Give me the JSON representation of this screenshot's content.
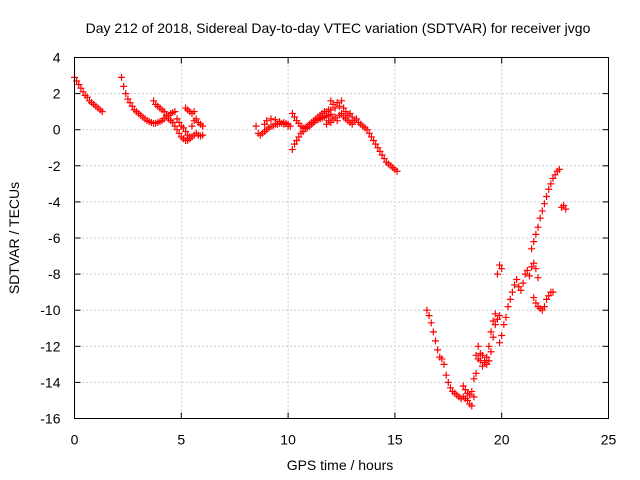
{
  "chart_data": {
    "type": "scatter",
    "title": "Day 212 of 2018, Sidereal Day-to-day VTEC variation (SDTVAR) for receiver jvgo",
    "xlabel": "GPS time / hours",
    "ylabel": "SDTVAR / TECUs",
    "xlim": [
      0,
      25
    ],
    "ylim": [
      -16,
      4
    ],
    "xticks": [
      0,
      5,
      10,
      15,
      20,
      25
    ],
    "yticks": [
      4,
      2,
      0,
      -2,
      -4,
      -6,
      -8,
      -10,
      -12,
      -14,
      -16
    ],
    "grid": true,
    "marker": "+",
    "color": "#ff0000",
    "segments": [
      {
        "name": "seg1",
        "points": [
          [
            0.0,
            2.9
          ],
          [
            0.1,
            2.7
          ],
          [
            0.2,
            2.5
          ],
          [
            0.3,
            2.3
          ],
          [
            0.4,
            2.1
          ],
          [
            0.5,
            1.9
          ],
          [
            0.6,
            1.8
          ],
          [
            0.7,
            1.6
          ],
          [
            0.8,
            1.5
          ],
          [
            0.9,
            1.4
          ],
          [
            1.0,
            1.3
          ],
          [
            1.1,
            1.2
          ],
          [
            1.2,
            1.1
          ],
          [
            1.3,
            1.0
          ]
        ]
      },
      {
        "name": "seg2",
        "points": [
          [
            2.2,
            2.9
          ],
          [
            2.3,
            2.4
          ],
          [
            2.4,
            2.0
          ],
          [
            2.5,
            1.7
          ],
          [
            2.6,
            1.5
          ],
          [
            2.7,
            1.3
          ],
          [
            2.8,
            1.1
          ],
          [
            2.9,
            1.0
          ],
          [
            3.0,
            0.9
          ],
          [
            3.1,
            0.8
          ],
          [
            3.2,
            0.7
          ],
          [
            3.3,
            0.6
          ],
          [
            3.4,
            0.5
          ],
          [
            3.5,
            0.45
          ],
          [
            3.6,
            0.4
          ],
          [
            3.7,
            0.35
          ],
          [
            3.8,
            0.35
          ],
          [
            3.9,
            0.4
          ],
          [
            4.0,
            0.45
          ],
          [
            4.1,
            0.5
          ],
          [
            4.2,
            0.6
          ],
          [
            4.3,
            0.7
          ],
          [
            4.4,
            0.8
          ],
          [
            4.5,
            0.9
          ],
          [
            4.6,
            0.95
          ],
          [
            4.7,
            1.0
          ]
        ]
      },
      {
        "name": "seg3",
        "points": [
          [
            3.7,
            1.6
          ],
          [
            3.8,
            1.4
          ],
          [
            3.9,
            1.3
          ],
          [
            4.0,
            1.2
          ],
          [
            4.1,
            1.1
          ],
          [
            4.2,
            1.0
          ],
          [
            4.3,
            0.8
          ],
          [
            4.4,
            0.6
          ],
          [
            4.5,
            0.5
          ],
          [
            4.6,
            0.4
          ],
          [
            4.7,
            0.2
          ],
          [
            4.8,
            0.0
          ],
          [
            4.9,
            -0.2
          ],
          [
            5.0,
            -0.4
          ],
          [
            5.1,
            -0.5
          ],
          [
            5.2,
            -0.6
          ],
          [
            5.3,
            -0.6
          ],
          [
            5.4,
            -0.5
          ],
          [
            5.5,
            -0.4
          ],
          [
            5.6,
            -0.3
          ],
          [
            5.7,
            -0.2
          ],
          [
            5.8,
            -0.3
          ],
          [
            5.9,
            -0.35
          ],
          [
            6.0,
            -0.3
          ]
        ]
      },
      {
        "name": "seg4",
        "points": [
          [
            4.8,
            0.6
          ],
          [
            4.9,
            0.4
          ],
          [
            5.0,
            0.2
          ],
          [
            5.1,
            0.1
          ],
          [
            5.2,
            -0.1
          ],
          [
            5.3,
            -0.3
          ],
          [
            5.4,
            -0.4
          ],
          [
            5.5,
            0.2
          ],
          [
            5.6,
            0.5
          ],
          [
            5.7,
            0.6
          ],
          [
            5.8,
            0.4
          ],
          [
            5.9,
            0.3
          ],
          [
            6.0,
            0.2
          ],
          [
            5.2,
            1.2
          ],
          [
            5.3,
            1.1
          ],
          [
            5.4,
            1.0
          ],
          [
            5.5,
            0.9
          ],
          [
            5.6,
            1.0
          ]
        ]
      },
      {
        "name": "seg5",
        "points": [
          [
            8.5,
            0.2
          ],
          [
            8.6,
            -0.2
          ],
          [
            8.7,
            -0.3
          ],
          [
            8.8,
            -0.2
          ],
          [
            8.9,
            -0.1
          ],
          [
            9.0,
            0.0
          ],
          [
            9.1,
            0.1
          ],
          [
            9.2,
            0.2
          ],
          [
            9.3,
            0.2
          ],
          [
            9.4,
            0.3
          ],
          [
            9.5,
            0.3
          ],
          [
            9.6,
            0.35
          ],
          [
            9.7,
            0.35
          ],
          [
            9.8,
            0.4
          ],
          [
            9.9,
            0.35
          ],
          [
            10.0,
            0.3
          ],
          [
            10.1,
            0.2
          ]
        ]
      },
      {
        "name": "seg6",
        "points": [
          [
            8.9,
            0.3
          ],
          [
            9.0,
            0.5
          ],
          [
            9.2,
            0.6
          ],
          [
            9.4,
            0.55
          ],
          [
            9.6,
            0.45
          ],
          [
            9.8,
            0.3
          ],
          [
            10.0,
            0.2
          ]
        ]
      },
      {
        "name": "seg7",
        "points": [
          [
            10.2,
            0.9
          ],
          [
            10.3,
            0.7
          ],
          [
            10.4,
            0.5
          ],
          [
            10.5,
            0.35
          ],
          [
            10.6,
            0.2
          ],
          [
            10.7,
            0.1
          ],
          [
            10.8,
            0.05
          ],
          [
            10.9,
            0.1
          ],
          [
            11.0,
            0.2
          ],
          [
            11.1,
            0.3
          ],
          [
            11.2,
            0.4
          ],
          [
            11.3,
            0.5
          ],
          [
            11.4,
            0.55
          ],
          [
            11.5,
            0.6
          ],
          [
            11.6,
            0.65
          ],
          [
            11.7,
            0.7
          ],
          [
            11.8,
            0.75
          ],
          [
            11.9,
            0.8
          ],
          [
            12.0,
            0.85
          ]
        ]
      },
      {
        "name": "seg8",
        "points": [
          [
            10.2,
            -1.1
          ],
          [
            10.3,
            -0.8
          ],
          [
            10.4,
            -0.6
          ],
          [
            10.5,
            -0.4
          ],
          [
            10.6,
            -0.2
          ],
          [
            10.7,
            -0.1
          ],
          [
            10.8,
            0.1
          ],
          [
            10.9,
            0.2
          ],
          [
            11.0,
            0.3
          ],
          [
            11.1,
            0.4
          ],
          [
            11.2,
            0.5
          ],
          [
            11.3,
            0.6
          ],
          [
            11.4,
            0.7
          ],
          [
            11.5,
            0.8
          ],
          [
            11.6,
            0.9
          ],
          [
            11.7,
            1.0
          ],
          [
            11.8,
            1.0
          ],
          [
            11.9,
            1.1
          ],
          [
            12.0,
            1.1
          ]
        ]
      },
      {
        "name": "seg9",
        "points": [
          [
            12.0,
            1.6
          ],
          [
            12.1,
            1.4
          ],
          [
            12.2,
            1.2
          ],
          [
            12.3,
            1.5
          ],
          [
            12.4,
            1.3
          ],
          [
            12.5,
            1.6
          ],
          [
            12.6,
            1.2
          ],
          [
            12.7,
            1.0
          ],
          [
            12.8,
            0.8
          ],
          [
            12.9,
            0.9
          ],
          [
            13.0,
            0.7
          ],
          [
            13.1,
            0.5
          ],
          [
            13.2,
            0.6
          ],
          [
            13.3,
            0.4
          ],
          [
            13.4,
            0.3
          ],
          [
            13.5,
            0.2
          ],
          [
            13.6,
            0.1
          ],
          [
            13.7,
            0.0
          ],
          [
            13.8,
            -0.2
          ],
          [
            13.9,
            -0.4
          ],
          [
            14.0,
            -0.6
          ],
          [
            14.1,
            -0.8
          ],
          [
            14.2,
            -1.0
          ],
          [
            14.3,
            -1.2
          ],
          [
            14.4,
            -1.4
          ],
          [
            14.5,
            -1.6
          ],
          [
            14.6,
            -1.8
          ],
          [
            14.7,
            -1.9
          ],
          [
            14.8,
            -2.0
          ],
          [
            14.9,
            -2.1
          ],
          [
            15.0,
            -2.2
          ],
          [
            15.1,
            -2.3
          ]
        ]
      },
      {
        "name": "seg10",
        "points": [
          [
            11.8,
            0.3
          ],
          [
            11.9,
            0.5
          ],
          [
            12.0,
            0.4
          ],
          [
            12.1,
            0.6
          ],
          [
            12.2,
            0.7
          ],
          [
            12.3,
            0.5
          ],
          [
            12.4,
            0.8
          ],
          [
            12.5,
            0.9
          ],
          [
            12.6,
            0.7
          ],
          [
            12.7,
            0.6
          ],
          [
            12.8,
            0.5
          ],
          [
            12.9,
            0.4
          ],
          [
            13.0,
            0.3
          ]
        ]
      },
      {
        "name": "seg11",
        "points": [
          [
            16.5,
            -10.0
          ],
          [
            16.6,
            -10.3
          ],
          [
            16.7,
            -10.7
          ],
          [
            16.8,
            -11.2
          ],
          [
            16.9,
            -11.7
          ],
          [
            17.0,
            -12.2
          ],
          [
            17.1,
            -12.6
          ],
          [
            17.2,
            -12.7
          ],
          [
            17.3,
            -13.0
          ],
          [
            17.4,
            -13.6
          ],
          [
            17.5,
            -14.0
          ],
          [
            17.6,
            -14.3
          ],
          [
            17.7,
            -14.5
          ],
          [
            17.8,
            -14.6
          ],
          [
            17.9,
            -14.7
          ],
          [
            18.0,
            -14.8
          ],
          [
            18.1,
            -14.9
          ],
          [
            18.2,
            -14.8
          ],
          [
            18.3,
            -14.9
          ],
          [
            18.4,
            -15.0
          ],
          [
            18.5,
            -15.2
          ],
          [
            18.6,
            -15.3
          ],
          [
            18.7,
            -14.8
          ],
          [
            18.8,
            -13.5
          ],
          [
            18.9,
            -12.7
          ],
          [
            19.0,
            -12.4
          ],
          [
            19.1,
            -12.5
          ],
          [
            19.2,
            -12.8
          ],
          [
            19.3,
            -13.0
          ],
          [
            19.4,
            -12.8
          ],
          [
            19.5,
            -12.3
          ],
          [
            19.6,
            -11.5
          ],
          [
            19.7,
            -10.8
          ],
          [
            19.8,
            -10.5
          ],
          [
            19.9,
            -10.3
          ]
        ]
      },
      {
        "name": "seg12",
        "points": [
          [
            18.2,
            -14.2
          ],
          [
            18.3,
            -14.4
          ],
          [
            18.4,
            -14.6
          ],
          [
            18.5,
            -14.7
          ],
          [
            18.6,
            -14.5
          ],
          [
            18.7,
            -13.8
          ],
          [
            18.8,
            -12.5
          ],
          [
            18.9,
            -12.0
          ],
          [
            19.0,
            -12.8
          ],
          [
            19.1,
            -13.1
          ],
          [
            19.2,
            -12.9
          ],
          [
            19.3,
            -12.6
          ],
          [
            19.4,
            -12.0
          ],
          [
            19.5,
            -11.2
          ],
          [
            19.6,
            -10.6
          ],
          [
            19.7,
            -10.2
          ]
        ]
      },
      {
        "name": "seg13",
        "points": [
          [
            19.9,
            -11.8
          ],
          [
            20.0,
            -11.4
          ],
          [
            20.1,
            -10.8
          ],
          [
            20.2,
            -10.4
          ],
          [
            20.3,
            -9.8
          ],
          [
            20.4,
            -9.4
          ],
          [
            20.5,
            -9.0
          ],
          [
            20.6,
            -8.6
          ],
          [
            20.7,
            -8.3
          ],
          [
            20.8,
            -8.7
          ],
          [
            20.9,
            -8.9
          ],
          [
            21.0,
            -8.5
          ],
          [
            21.1,
            -8.0
          ],
          [
            21.2,
            -7.8
          ],
          [
            21.3,
            -8.1
          ],
          [
            21.4,
            -7.6
          ],
          [
            21.5,
            -7.4
          ],
          [
            21.6,
            -7.7
          ],
          [
            21.7,
            -8.2
          ]
        ]
      },
      {
        "name": "seg14",
        "points": [
          [
            19.8,
            -8.0
          ],
          [
            19.9,
            -7.5
          ],
          [
            20.0,
            -7.7
          ]
        ]
      },
      {
        "name": "seg15",
        "points": [
          [
            21.4,
            -6.6
          ],
          [
            21.5,
            -6.2
          ],
          [
            21.6,
            -5.8
          ],
          [
            21.7,
            -5.4
          ],
          [
            21.8,
            -4.9
          ],
          [
            21.9,
            -4.5
          ],
          [
            22.0,
            -4.1
          ],
          [
            22.1,
            -3.7
          ],
          [
            22.2,
            -3.3
          ],
          [
            22.3,
            -3.0
          ],
          [
            22.4,
            -2.7
          ],
          [
            22.5,
            -2.5
          ],
          [
            22.6,
            -2.3
          ],
          [
            22.7,
            -2.2
          ]
        ]
      },
      {
        "name": "seg16",
        "points": [
          [
            21.5,
            -9.3
          ],
          [
            21.6,
            -9.6
          ],
          [
            21.7,
            -9.8
          ],
          [
            21.8,
            -9.9
          ],
          [
            21.9,
            -10.0
          ],
          [
            22.0,
            -9.8
          ],
          [
            22.1,
            -9.4
          ],
          [
            22.2,
            -9.2
          ],
          [
            22.3,
            -9.0
          ],
          [
            22.4,
            -9.0
          ]
        ]
      },
      {
        "name": "seg17",
        "points": [
          [
            22.8,
            -4.3
          ],
          [
            22.9,
            -4.2
          ],
          [
            23.0,
            -4.4
          ]
        ]
      }
    ]
  }
}
